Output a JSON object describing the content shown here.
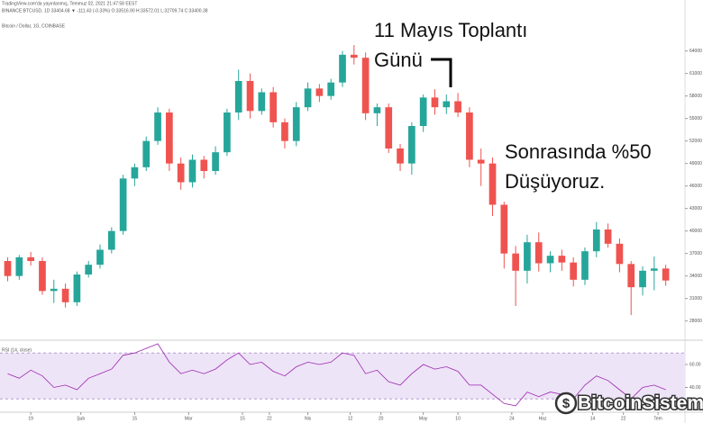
{
  "header": {
    "publisher": "TradingView.com'da yayınlanmış, Temmuz 02, 2021 21:47:58 EEST",
    "symbol": "BINANCE:BTCUSD, 1D 33404.68 ▼ -111.43 (-0.33%) O:33516.90 H:33572.01 L:32709.74 C:33400.38",
    "pair": "Bitcoin / Dollar, 1G, COINBASE"
  },
  "watermark": "BitcoinSistemi",
  "chart_data": [
    {
      "type": "candlestick",
      "up_color": "#26a69a",
      "down_color": "#ef5350",
      "grid": false,
      "annotations": [
        "11 Mayıs Toplantı",
        "Günü",
        "Sonrasında %50",
        "Düşüyoruz."
      ],
      "x": [
        12,
        15,
        18,
        21,
        24,
        27,
        30,
        33,
        36,
        39,
        42,
        45,
        48,
        51,
        54,
        57,
        60,
        63,
        66,
        69,
        72,
        75,
        78,
        81,
        84,
        87,
        90,
        93,
        96,
        99,
        102,
        105,
        108,
        111,
        114,
        117,
        120,
        123,
        126,
        129,
        132,
        135,
        138,
        141,
        144,
        147,
        150,
        153,
        156,
        159,
        162,
        165,
        168,
        171,
        174,
        177,
        180,
        183
      ],
      "open": [
        36000,
        34000,
        36500,
        36000,
        32000,
        32300,
        30500,
        34200,
        35500,
        37500,
        40000,
        47000,
        48500,
        52000,
        55800,
        49000,
        46500,
        49500,
        48000,
        50500,
        55800,
        60000,
        56000,
        58500,
        54500,
        52000,
        56500,
        59000,
        58000,
        59800,
        63500,
        63100,
        55700,
        56500,
        51000,
        49000,
        54000,
        57800,
        56500,
        57300,
        55800,
        49500,
        49000,
        43500,
        37000,
        34700,
        38500,
        35700,
        36700,
        35800,
        33500,
        37300,
        40200,
        38300,
        35600,
        32500,
        34700,
        35000
      ],
      "high": [
        36500,
        36800,
        37200,
        36500,
        33500,
        33000,
        34600,
        36000,
        38200,
        40500,
        47500,
        49000,
        52600,
        56500,
        56300,
        49800,
        50200,
        50000,
        51300,
        56300,
        61500,
        61000,
        59000,
        59200,
        55000,
        57200,
        59800,
        59600,
        60300,
        64000,
        64800,
        63800,
        57000,
        57000,
        51600,
        54500,
        58200,
        58900,
        58200,
        58400,
        56500,
        51000,
        49800,
        43900,
        38000,
        39500,
        39800,
        37300,
        37500,
        36500,
        37800,
        41200,
        41000,
        39000,
        36000,
        35300,
        36600,
        35500
      ],
      "low": [
        33300,
        33500,
        35400,
        31500,
        30400,
        29800,
        30000,
        33800,
        35000,
        37000,
        39500,
        46000,
        48000,
        51500,
        48000,
        45500,
        45800,
        47000,
        47500,
        50000,
        54800,
        55000,
        55500,
        53800,
        51000,
        51300,
        56000,
        57200,
        57500,
        59200,
        62200,
        54800,
        54000,
        50400,
        48000,
        47500,
        53200,
        55500,
        55600,
        55200,
        48500,
        46000,
        42000,
        35000,
        30000,
        33000,
        34600,
        34500,
        34700,
        32600,
        32800,
        36500,
        37800,
        34500,
        28800,
        31400,
        32100,
        32700
      ],
      "close": [
        34000,
        36500,
        36000,
        32000,
        32300,
        30500,
        34200,
        35500,
        37500,
        40000,
        47000,
        48500,
        52000,
        55800,
        49000,
        46500,
        49500,
        48000,
        50500,
        55800,
        60000,
        56000,
        58500,
        54500,
        52000,
        56500,
        59000,
        58000,
        59800,
        63500,
        63100,
        55700,
        56500,
        51000,
        49000,
        54000,
        57800,
        56500,
        57300,
        55800,
        49500,
        49000,
        43500,
        37000,
        34700,
        38500,
        35700,
        36700,
        35800,
        33500,
        37300,
        40200,
        38300,
        35600,
        32500,
        34700,
        35000,
        33400
      ],
      "xlim": [
        10,
        188
      ],
      "xticks": [
        {
          "value": 18,
          "label": "19"
        },
        {
          "value": 31,
          "label": "Şub"
        },
        {
          "value": 45,
          "label": "15"
        },
        {
          "value": 59,
          "label": "Mar"
        },
        {
          "value": 73,
          "label": "15"
        },
        {
          "value": 80,
          "label": "22"
        },
        {
          "value": 90,
          "label": "Nis"
        },
        {
          "value": 101,
          "label": "12"
        },
        {
          "value": 109,
          "label": "20"
        },
        {
          "value": 120,
          "label": "May"
        },
        {
          "value": 129,
          "label": "10"
        },
        {
          "value": 143,
          "label": "24"
        },
        {
          "value": 151,
          "label": "Haz"
        },
        {
          "value": 164,
          "label": "14"
        },
        {
          "value": 172,
          "label": "22"
        },
        {
          "value": 181,
          "label": "Tem"
        }
      ],
      "ylim": [
        27000,
        66000
      ],
      "yticks": [
        28000,
        31000,
        34000,
        37000,
        40000,
        43000,
        46000,
        49000,
        52000,
        55000,
        58000,
        61000,
        64000
      ]
    },
    {
      "type": "line",
      "title": "RSI (14, close)",
      "color": "#9c27b0",
      "band": [
        30,
        70
      ],
      "band_color": "#ede4f7",
      "ylim": [
        20,
        78
      ],
      "yticks": [
        {
          "value": 40,
          "label": "40.00"
        },
        {
          "value": 60,
          "label": "60.00"
        }
      ],
      "values": [
        52,
        48,
        55,
        50,
        40,
        42,
        38,
        48,
        52,
        56,
        68,
        70,
        74,
        78,
        62,
        52,
        55,
        52,
        56,
        64,
        70,
        60,
        62,
        54,
        50,
        58,
        62,
        60,
        62,
        70,
        68,
        52,
        55,
        45,
        42,
        52,
        60,
        56,
        58,
        54,
        42,
        42,
        34,
        26,
        24,
        36,
        32,
        36,
        34,
        30,
        42,
        50,
        46,
        38,
        30,
        40,
        42,
        38
      ]
    }
  ]
}
